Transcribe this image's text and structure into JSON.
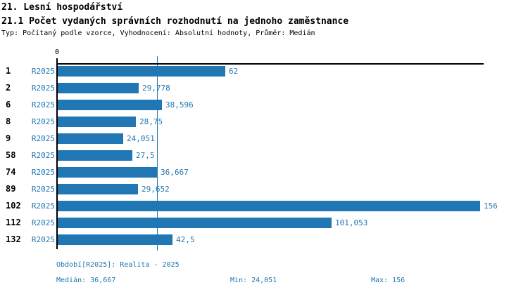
{
  "colors": {
    "accent": "#2077b4",
    "ink": "#000000"
  },
  "page": {
    "title": "21. Lesní hospodářství",
    "subtitle": "21.1 Počet vydaných správních rozhodnutí na jednoho zaměstnance",
    "meta": "Typ: Počítaný podle vzorce, Vyhodnocení: Absolutní hodnoty, Průměr: Medián"
  },
  "chart_data": {
    "type": "bar",
    "orientation": "horizontal",
    "title": "21.1 Počet vydaných správních rozhodnutí na jednoho zaměstnance",
    "categories": [
      "1",
      "2",
      "6",
      "8",
      "9",
      "58",
      "74",
      "89",
      "102",
      "112",
      "132"
    ],
    "series": [
      {
        "name": "R2025",
        "values": [
          62,
          29.778,
          38.596,
          28.75,
          24.051,
          27.5,
          36.667,
          29.652,
          156,
          101.053,
          42.5
        ],
        "value_labels": [
          "62",
          "29,778",
          "38,596",
          "28,75",
          "24,051",
          "27,5",
          "36,667",
          "29,652",
          "156",
          "101,053",
          "42,5"
        ]
      }
    ],
    "xlim": [
      0,
      156
    ],
    "x_axis_tick_labels": [
      "0"
    ],
    "grid": false,
    "legend_position": "none",
    "median_line_value": 36.667,
    "stats": {
      "median": 36.667,
      "min": 24.051,
      "max": 156
    }
  },
  "footer": {
    "period": "Období[R2025]: Realita - 2025",
    "median": "Medián: 36,667",
    "min": "Min: 24,051",
    "max": "Max: 156"
  }
}
